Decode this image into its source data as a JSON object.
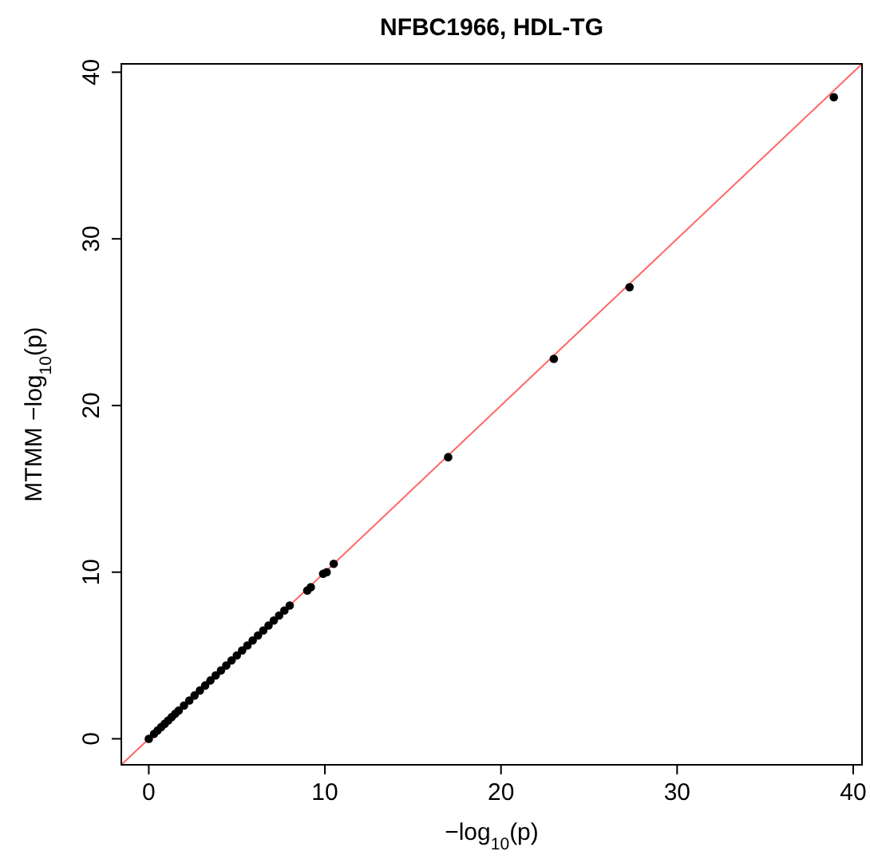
{
  "chart_data": {
    "type": "scatter",
    "title": "NFBC1966, HDL-TG",
    "xlabel": "−log$_{10}$(p)",
    "ylabel": "MTMM  −log$_{10}$(p)",
    "xlim": [
      -1.56,
      40.5
    ],
    "ylim": [
      -1.56,
      40.5
    ],
    "xticks": [
      0,
      10,
      20,
      30,
      40
    ],
    "yticks": [
      0,
      10,
      20,
      30,
      40
    ],
    "grid": false,
    "series": [
      {
        "type": "line",
        "color": "#ff6666",
        "x": [
          -1.5,
          40.5
        ],
        "values": [
          -1.5,
          40.5
        ]
      },
      {
        "color": "#000000",
        "marker": "circle",
        "x": [
          0,
          0.3,
          0.5,
          0.7,
          0.9,
          1.1,
          1.3,
          1.5,
          1.7,
          2.0,
          2.3,
          2.6,
          2.9,
          3.2,
          3.5,
          3.8,
          4.1,
          4.4,
          4.7,
          5.0,
          5.3,
          5.6,
          5.9,
          6.2,
          6.5,
          6.8,
          7.1,
          7.4,
          7.7,
          8.0,
          9.0,
          9.2,
          9.9,
          10.1,
          10.5,
          17.0,
          23.0,
          27.3,
          38.9
        ],
        "values": [
          0,
          0.3,
          0.5,
          0.7,
          0.9,
          1.1,
          1.3,
          1.5,
          1.7,
          2.0,
          2.3,
          2.6,
          2.9,
          3.2,
          3.5,
          3.8,
          4.1,
          4.4,
          4.7,
          5.0,
          5.3,
          5.6,
          5.9,
          6.2,
          6.5,
          6.8,
          7.1,
          7.4,
          7.7,
          8.0,
          8.9,
          9.1,
          9.9,
          10.0,
          10.5,
          16.9,
          22.8,
          27.1,
          38.5
        ]
      }
    ]
  }
}
